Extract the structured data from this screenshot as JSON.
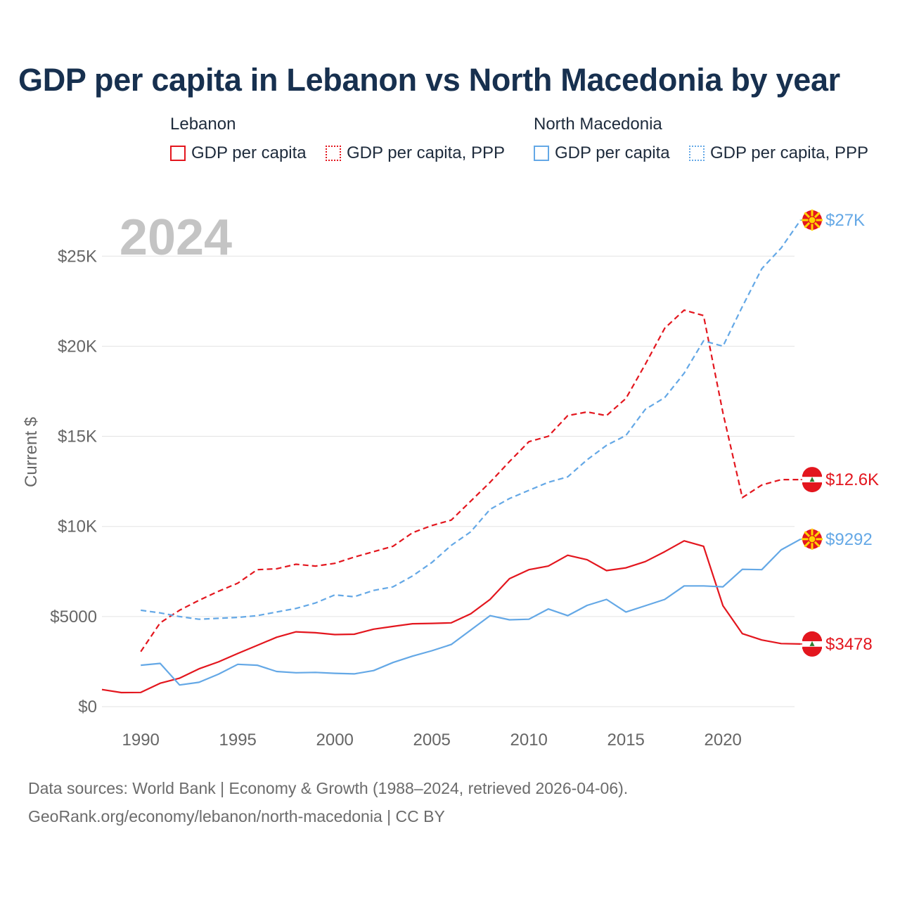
{
  "title": "GDP per capita in Lebanon vs North Macedonia by year",
  "legend": {
    "groups": [
      {
        "name": "Lebanon",
        "color": "#e3161e",
        "items": [
          "GDP per capita",
          "GDP per capita, PPP"
        ]
      },
      {
        "name": "North Macedonia",
        "color": "#64a8e6",
        "items": [
          "GDP per capita",
          "GDP per capita, PPP"
        ]
      }
    ]
  },
  "year_label": "2024",
  "ylabel": "Current $",
  "source_line1": "Data sources: World Bank | Economy & Growth (1988–2024, retrieved 2026-04-06).",
  "source_line2": "GeoRank.org/economy/lebanon/north-macedonia | CC BY",
  "chart_data": {
    "type": "line",
    "title": "GDP per capita in Lebanon vs North Macedonia by year",
    "ylabel": "Current $",
    "xlabel": "",
    "xlim": [
      1988,
      2024
    ],
    "ylim": [
      0,
      27500
    ],
    "x_ticks": [
      1990,
      1995,
      2000,
      2005,
      2010,
      2015,
      2020
    ],
    "x_tick_labels": [
      "1990",
      "1995",
      "2000",
      "2005",
      "2010",
      "2015",
      "2020"
    ],
    "y_ticks": [
      0,
      5000,
      10000,
      15000,
      20000,
      25000
    ],
    "y_tick_labels": [
      "$0",
      "$5000",
      "$10K",
      "$15K",
      "$20K",
      "$25K"
    ],
    "series": [
      {
        "name": "Lebanon GDP per capita",
        "country": "Lebanon",
        "style": "solid",
        "color": "#e3161e",
        "end_label": "$3478",
        "end_flag": "lebanon-flag",
        "x": [
          1988,
          1989,
          1990,
          1991,
          1992,
          1993,
          1994,
          1995,
          1996,
          1997,
          1998,
          1999,
          2000,
          2001,
          2002,
          2003,
          2004,
          2005,
          2006,
          2007,
          2008,
          2009,
          2010,
          2011,
          2012,
          2013,
          2014,
          2015,
          2016,
          2017,
          2018,
          2019,
          2020,
          2021,
          2022,
          2023,
          2024
        ],
        "values": [
          950,
          780,
          790,
          1300,
          1580,
          2100,
          2480,
          2950,
          3400,
          3850,
          4150,
          4100,
          4000,
          4020,
          4300,
          4450,
          4600,
          4620,
          4650,
          5150,
          5950,
          7100,
          7600,
          7800,
          8400,
          8150,
          7550,
          7700,
          8050,
          8600,
          9200,
          8900,
          5600,
          4050,
          3700,
          3500,
          3478
        ]
      },
      {
        "name": "Lebanon GDP per capita, PPP",
        "country": "Lebanon",
        "style": "dashed",
        "color": "#e3161e",
        "end_label": "$12.6K",
        "end_flag": "lebanon-flag",
        "x": [
          1990,
          1991,
          1992,
          1993,
          1994,
          1995,
          1996,
          1997,
          1998,
          1999,
          2000,
          2001,
          2002,
          2003,
          2004,
          2005,
          2006,
          2007,
          2008,
          2009,
          2010,
          2011,
          2012,
          2013,
          2014,
          2015,
          2016,
          2017,
          2018,
          2019,
          2020,
          2021,
          2022,
          2023,
          2024
        ],
        "values": [
          3050,
          4650,
          5350,
          5900,
          6400,
          6850,
          7600,
          7650,
          7900,
          7800,
          7950,
          8300,
          8600,
          8900,
          9650,
          10050,
          10350,
          11400,
          12450,
          13600,
          14700,
          15000,
          16150,
          16350,
          16150,
          17100,
          19000,
          21000,
          22000,
          21700,
          16300,
          11600,
          12300,
          12600,
          12600
        ]
      },
      {
        "name": "North Macedonia GDP per capita",
        "country": "North Macedonia",
        "style": "solid",
        "color": "#64a8e6",
        "end_label": "$9292",
        "end_flag": "north-macedonia-flag",
        "x": [
          1990,
          1991,
          1992,
          1993,
          1994,
          1995,
          1996,
          1997,
          1998,
          1999,
          2000,
          2001,
          2002,
          2003,
          2004,
          2005,
          2006,
          2007,
          2008,
          2009,
          2010,
          2011,
          2012,
          2013,
          2014,
          2015,
          2016,
          2017,
          2018,
          2019,
          2020,
          2021,
          2022,
          2023,
          2024
        ],
        "values": [
          2300,
          2400,
          1200,
          1350,
          1800,
          2350,
          2300,
          1950,
          1880,
          1900,
          1850,
          1820,
          2000,
          2450,
          2800,
          3100,
          3450,
          4250,
          5050,
          4820,
          4850,
          5420,
          5050,
          5620,
          5950,
          5250,
          5600,
          5950,
          6700,
          6700,
          6650,
          7620,
          7600,
          8700,
          9292
        ]
      },
      {
        "name": "North Macedonia GDP per capita, PPP",
        "country": "North Macedonia",
        "style": "dashed",
        "color": "#64a8e6",
        "end_label": "$27K",
        "end_flag": "north-macedonia-flag",
        "x": [
          1990,
          1991,
          1992,
          1993,
          1994,
          1995,
          1996,
          1997,
          1998,
          1999,
          2000,
          2001,
          2002,
          2003,
          2004,
          2005,
          2006,
          2007,
          2008,
          2009,
          2010,
          2011,
          2012,
          2013,
          2014,
          2015,
          2016,
          2017,
          2018,
          2019,
          2020,
          2021,
          2022,
          2023,
          2024
        ],
        "values": [
          5350,
          5200,
          5000,
          4850,
          4900,
          4950,
          5050,
          5250,
          5450,
          5750,
          6200,
          6100,
          6450,
          6650,
          7250,
          8000,
          8950,
          9700,
          10950,
          11550,
          12000,
          12450,
          12750,
          13700,
          14500,
          15050,
          16500,
          17150,
          18500,
          20300,
          20000,
          22200,
          24300,
          25450,
          27000
        ]
      }
    ]
  }
}
